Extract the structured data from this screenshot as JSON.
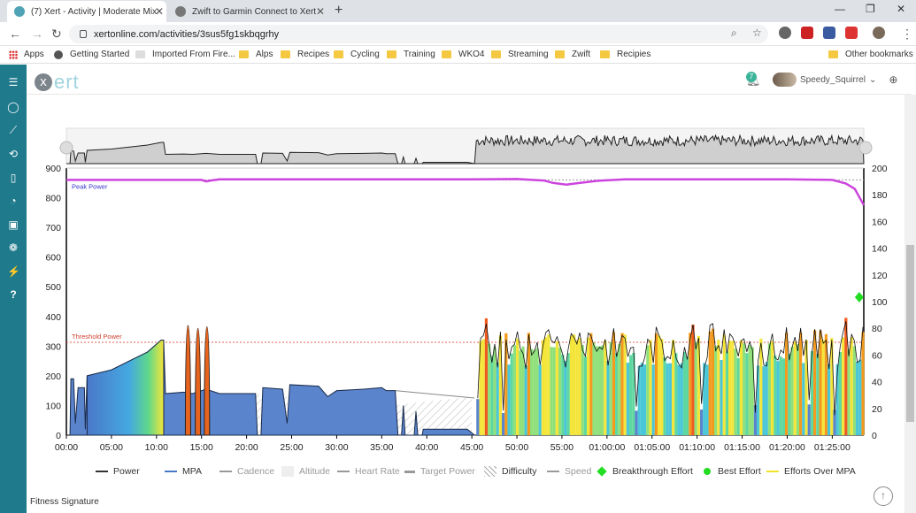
{
  "browser": {
    "tabs": [
      {
        "title": "(7) Xert - Activity | Moderate Mix",
        "active": true
      },
      {
        "title": "Zwift to Garmin Connect to Xert",
        "active": false
      }
    ],
    "url": "xertonline.com/activities/3sus5fg1skbqgrhy",
    "bookmarks": [
      "Apps",
      "Getting Started",
      "Imported From Fire...",
      "Alps",
      "Recipes",
      "Cycling",
      "Training",
      "WKO4",
      "Streaming",
      "Zwift",
      "Recipies"
    ],
    "other_bookmarks": "Other bookmarks"
  },
  "app": {
    "logo_letter": "x",
    "logo_text": "ert",
    "notifications": "7",
    "username": "Speedy_Squirrel"
  },
  "chart_data": {
    "type": "area",
    "x_ticks": [
      "00:00",
      "05:00",
      "10:00",
      "15:00",
      "20:00",
      "25:00",
      "30:00",
      "35:00",
      "40:00",
      "45:00",
      "50:00",
      "55:00",
      "01:00:00",
      "01:05:00",
      "01:10:00",
      "01:15:00",
      "01:20:00",
      "01:25:00"
    ],
    "y_left_ticks": [
      0,
      100,
      200,
      300,
      400,
      500,
      600,
      700,
      800,
      900
    ],
    "y_right_ticks": [
      0,
      20,
      40,
      60,
      80,
      100,
      120,
      140,
      160,
      180,
      200
    ],
    "ylim_left": [
      0,
      900
    ],
    "ylim_right": [
      0,
      200
    ],
    "x_range_minutes": [
      0,
      88.5
    ],
    "annotations": {
      "peak_power_label": "Peak Power",
      "threshold_label": "Threshold Power"
    },
    "threshold_power": 313,
    "peak_power": 860,
    "peak_power_series": [
      [
        0,
        860
      ],
      [
        15,
        860
      ],
      [
        15.5,
        855
      ],
      [
        16,
        858
      ],
      [
        17,
        862
      ],
      [
        28,
        862
      ],
      [
        45,
        862
      ],
      [
        50,
        863
      ],
      [
        53,
        858
      ],
      [
        54,
        850
      ],
      [
        55.5,
        844
      ],
      [
        57,
        850
      ],
      [
        59,
        857
      ],
      [
        62,
        862
      ],
      [
        80,
        862
      ],
      [
        85,
        860
      ],
      [
        86.5,
        848
      ],
      [
        87.5,
        830
      ],
      [
        88.5,
        775
      ]
    ],
    "mpa_series": [
      [
        0.4,
        0
      ],
      [
        0.5,
        190
      ],
      [
        0.8,
        190
      ],
      [
        1,
        40
      ],
      [
        1.3,
        160
      ],
      [
        2,
        160
      ],
      [
        2.1,
        20
      ],
      [
        2.3,
        200
      ],
      [
        5,
        220
      ],
      [
        7,
        250
      ],
      [
        9,
        280
      ],
      [
        10.5,
        320
      ],
      [
        10.8,
        320
      ],
      [
        11,
        140
      ],
      [
        13,
        145
      ],
      [
        14,
        140
      ],
      [
        15.5,
        155
      ],
      [
        17,
        140
      ],
      [
        20,
        140
      ],
      [
        21,
        140
      ],
      [
        21.2,
        0
      ],
      [
        21.6,
        0
      ],
      [
        21.8,
        160
      ],
      [
        24,
        155
      ],
      [
        24.5,
        40
      ],
      [
        24.8,
        170
      ],
      [
        28,
        165
      ],
      [
        29,
        130
      ],
      [
        30,
        150
      ],
      [
        33,
        155
      ],
      [
        35,
        160
      ],
      [
        35.5,
        150
      ],
      [
        36.5,
        150
      ],
      [
        36.8,
        0
      ],
      [
        37.2,
        0
      ],
      [
        37.4,
        100
      ],
      [
        37.6,
        0
      ],
      [
        38.6,
        0
      ],
      [
        38.8,
        80
      ],
      [
        39,
        0
      ],
      [
        39.5,
        0
      ],
      [
        39.6,
        20
      ],
      [
        44.5,
        20
      ],
      [
        45.3,
        0
      ]
    ],
    "overmpa_spikes": [
      [
        13.5,
        370
      ],
      [
        14.6,
        360
      ],
      [
        15.6,
        365
      ]
    ],
    "power_region": {
      "start": 45.5,
      "end": 88.5,
      "min": 40,
      "max": 400,
      "typical": 290
    },
    "breakthrough_point": [
      88.0,
      465
    ],
    "legend": [
      {
        "label": "Power",
        "color": "#333333",
        "style": "line"
      },
      {
        "label": "MPA",
        "color": "#4a78c9",
        "style": "line"
      },
      {
        "label": "Cadence",
        "color": "#999999",
        "style": "line"
      },
      {
        "label": "Altitude",
        "color": "#eeeeee",
        "style": "box"
      },
      {
        "label": "Heart Rate",
        "color": "#999999",
        "style": "line"
      },
      {
        "label": "Target Power",
        "color": "#999999",
        "style": "dash"
      },
      {
        "label": "Difficulty",
        "color": "#999999",
        "style": "hatch"
      },
      {
        "label": "Speed",
        "color": "#999999",
        "style": "line"
      },
      {
        "label": "Breakthrough Effort",
        "color": "#22dd22",
        "style": "diamond"
      },
      {
        "label": "Best Effort",
        "color": "#22dd22",
        "style": "dot"
      },
      {
        "label": "Efforts Over MPA",
        "color": "#f2e22a",
        "style": "line"
      }
    ]
  },
  "footer": {
    "fitness_signature": "Fitness Signature"
  }
}
